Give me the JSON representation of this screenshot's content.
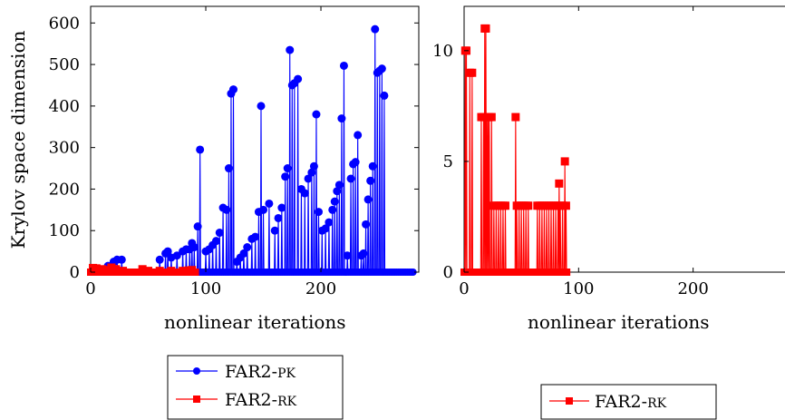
{
  "chart_data": [
    {
      "type": "line",
      "xlabel": "nonlinear iterations",
      "ylabel": "Krylov space dimension",
      "xlim": [
        0,
        285
      ],
      "ylim": [
        0,
        640
      ],
      "xticks": [
        0,
        100,
        200
      ],
      "yticks": [
        0,
        100,
        200,
        300,
        400,
        500,
        600
      ],
      "grid": false,
      "legend_position": "below",
      "series": [
        {
          "name": "FAR2-PK",
          "color": "#0000ff",
          "marker": "circle",
          "points": [
            [
              15,
              15
            ],
            [
              20,
              25
            ],
            [
              23,
              30
            ],
            [
              27,
              30
            ],
            [
              60,
              30
            ],
            [
              65,
              45
            ],
            [
              67,
              50
            ],
            [
              70,
              35
            ],
            [
              75,
              40
            ],
            [
              80,
              50
            ],
            [
              83,
              55
            ],
            [
              86,
              55
            ],
            [
              88,
              70
            ],
            [
              90,
              60
            ],
            [
              93,
              110
            ],
            [
              95,
              295
            ],
            [
              100,
              50
            ],
            [
              103,
              55
            ],
            [
              106,
              65
            ],
            [
              109,
              75
            ],
            [
              112,
              95
            ],
            [
              115,
              155
            ],
            [
              118,
              150
            ],
            [
              120,
              250
            ],
            [
              122,
              430
            ],
            [
              124,
              440
            ],
            [
              127,
              25
            ],
            [
              130,
              35
            ],
            [
              133,
              45
            ],
            [
              136,
              60
            ],
            [
              140,
              80
            ],
            [
              143,
              85
            ],
            [
              146,
              145
            ],
            [
              148,
              400
            ],
            [
              150,
              150
            ],
            [
              155,
              165
            ],
            [
              160,
              100
            ],
            [
              163,
              130
            ],
            [
              166,
              155
            ],
            [
              169,
              230
            ],
            [
              171,
              250
            ],
            [
              173,
              535
            ],
            [
              175,
              450
            ],
            [
              177,
              455
            ],
            [
              180,
              465
            ],
            [
              183,
              200
            ],
            [
              186,
              190
            ],
            [
              189,
              225
            ],
            [
              192,
              240
            ],
            [
              194,
              255
            ],
            [
              196,
              380
            ],
            [
              198,
              145
            ],
            [
              201,
              100
            ],
            [
              204,
              105
            ],
            [
              207,
              120
            ],
            [
              210,
              150
            ],
            [
              212,
              170
            ],
            [
              214,
              195
            ],
            [
              216,
              210
            ],
            [
              218,
              370
            ],
            [
              220,
              497
            ],
            [
              223,
              40
            ],
            [
              226,
              225
            ],
            [
              228,
              260
            ],
            [
              230,
              265
            ],
            [
              232,
              330
            ],
            [
              235,
              40
            ],
            [
              237,
              45
            ],
            [
              239,
              115
            ],
            [
              241,
              175
            ],
            [
              243,
              220
            ],
            [
              245,
              255
            ],
            [
              247,
              585
            ],
            [
              249,
              480
            ],
            [
              251,
              485
            ],
            [
              253,
              490
            ],
            [
              255,
              425
            ]
          ],
          "baseline_to_x": 280
        },
        {
          "name": "FAR2-RK",
          "color": "#ff0000",
          "marker": "square",
          "points": [
            [
              2,
              10
            ],
            [
              5,
              9
            ],
            [
              10,
              7
            ],
            [
              15,
              5
            ],
            [
              18,
              11
            ],
            [
              22,
              7
            ],
            [
              28,
              3
            ],
            [
              45,
              7
            ],
            [
              50,
              3
            ],
            [
              60,
              3
            ],
            [
              70,
              3
            ],
            [
              80,
              3
            ],
            [
              85,
              4
            ],
            [
              88,
              5
            ]
          ],
          "baseline_to_x": 92
        }
      ]
    },
    {
      "type": "line",
      "xlabel": "nonlinear iterations",
      "ylabel": "",
      "xlim": [
        0,
        285
      ],
      "ylim": [
        0,
        12
      ],
      "xticks": [
        0,
        100,
        200
      ],
      "yticks": [
        0,
        5,
        10
      ],
      "grid": false,
      "legend_position": "below",
      "series": [
        {
          "name": "FAR2-RK",
          "color": "#ff0000",
          "marker": "square",
          "points": [
            [
              1,
              10
            ],
            [
              2,
              10
            ],
            [
              5,
              9
            ],
            [
              7,
              9
            ],
            [
              15,
              7
            ],
            [
              17,
              7
            ],
            [
              18,
              11
            ],
            [
              19,
              11
            ],
            [
              20,
              7
            ],
            [
              21,
              7
            ],
            [
              22,
              7
            ],
            [
              24,
              7
            ],
            [
              26,
              3
            ],
            [
              28,
              3
            ],
            [
              30,
              3
            ],
            [
              32,
              3
            ],
            [
              34,
              3
            ],
            [
              36,
              3
            ],
            [
              45,
              7
            ],
            [
              46,
              3
            ],
            [
              48,
              3
            ],
            [
              50,
              3
            ],
            [
              52,
              3
            ],
            [
              54,
              3
            ],
            [
              56,
              3
            ],
            [
              64,
              3
            ],
            [
              66,
              3
            ],
            [
              68,
              3
            ],
            [
              70,
              3
            ],
            [
              72,
              3
            ],
            [
              74,
              3
            ],
            [
              76,
              3
            ],
            [
              78,
              3
            ],
            [
              80,
              3
            ],
            [
              82,
              3
            ],
            [
              83,
              4
            ],
            [
              84,
              3
            ],
            [
              86,
              3
            ],
            [
              88,
              5
            ],
            [
              89,
              3
            ]
          ],
          "baseline_to_x": 90
        }
      ]
    }
  ],
  "legend_left": {
    "items": [
      {
        "prefix": "FAR2-",
        "suffix": "PK",
        "color": "#0000ff",
        "marker": "circle"
      },
      {
        "prefix": "FAR2-",
        "suffix": "RK",
        "color": "#ff0000",
        "marker": "square"
      }
    ]
  },
  "legend_right": {
    "items": [
      {
        "prefix": "FAR2-",
        "suffix": "RK",
        "color": "#ff0000",
        "marker": "square"
      }
    ]
  }
}
